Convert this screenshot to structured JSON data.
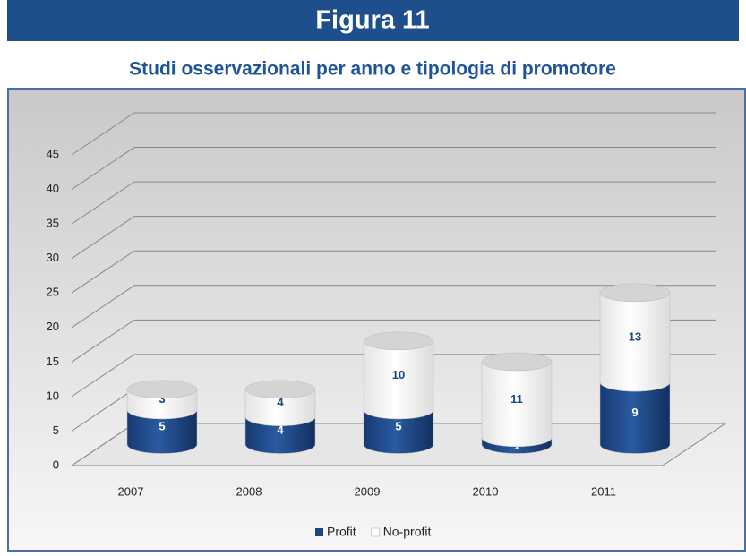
{
  "chart_data": {
    "type": "bar",
    "stacked": true,
    "header": "Figura 11",
    "title": "Studi osservazionali per anno e tipologia di promotore",
    "categories": [
      "2007",
      "2008",
      "2009",
      "2010",
      "2011"
    ],
    "series": [
      {
        "name": "Profit",
        "color": "#1b4585",
        "values": [
          5,
          4,
          5,
          1,
          9
        ]
      },
      {
        "name": "No-profit",
        "color": "#ffffff",
        "values": [
          3,
          4,
          10,
          11,
          13
        ]
      }
    ],
    "ylim": [
      0,
      45
    ],
    "yticks": [
      0,
      5,
      10,
      15,
      20,
      25,
      30,
      35,
      40,
      45
    ],
    "grid": true,
    "legend": "bottom"
  }
}
